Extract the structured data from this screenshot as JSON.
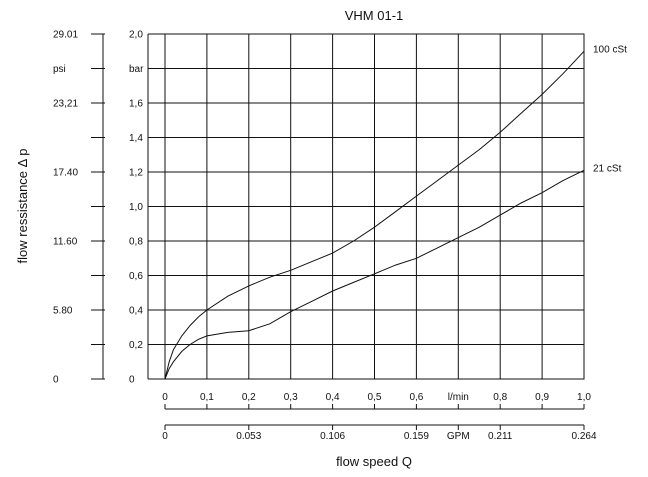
{
  "chart_data": {
    "type": "line",
    "title": "VHM 01-1",
    "xlabel": "flow speed Q",
    "ylabel": "flow ressistance Δ p",
    "x_unit": "l/min",
    "x_unit_secondary": "GPM",
    "y_unit": "bar",
    "y_unit_secondary": "psi",
    "xlim": [
      0,
      1.0
    ],
    "ylim": [
      0,
      2.0
    ],
    "grid": true,
    "x_ticks": [
      "0",
      "0,1",
      "0,2",
      "0,3",
      "0,4",
      "0,5",
      "0,6",
      "l/min",
      "0,8",
      "0,9",
      "1,0"
    ],
    "gpm_ticks": [
      {
        "x": 0,
        "label": "0"
      },
      {
        "x": 0.2,
        "label": "0.053"
      },
      {
        "x": 0.4,
        "label": "0.106"
      },
      {
        "x": 0.6,
        "label": "0.159"
      },
      {
        "x": 0.7,
        "label": "GPM"
      },
      {
        "x": 0.8,
        "label": "0.211"
      },
      {
        "x": 1.0,
        "label": "0.264"
      }
    ],
    "y_ticks": [
      "0",
      "0,2",
      "0,4",
      "0,6",
      "0,8",
      "1,0",
      "1,2",
      "1,4",
      "1,6",
      "bar",
      "2,0"
    ],
    "psi_ticks": [
      {
        "y": 0,
        "label": "0"
      },
      {
        "y": 0.4,
        "label": "5.80"
      },
      {
        "y": 0.8,
        "label": "11.60"
      },
      {
        "y": 1.2,
        "label": "17.40"
      },
      {
        "y": 1.6,
        "label": "23,21"
      },
      {
        "y": 1.8,
        "label": "psi"
      },
      {
        "y": 2.0,
        "label": "29.01"
      }
    ],
    "series": [
      {
        "name": "100 cSt",
        "x": [
          0,
          0.01,
          0.02,
          0.04,
          0.06,
          0.08,
          0.1,
          0.15,
          0.2,
          0.25,
          0.3,
          0.35,
          0.4,
          0.45,
          0.5,
          0.55,
          0.6,
          0.65,
          0.7,
          0.75,
          0.8,
          0.85,
          0.9,
          0.95,
          1.0
        ],
        "y": [
          0,
          0.1,
          0.17,
          0.25,
          0.31,
          0.36,
          0.4,
          0.48,
          0.54,
          0.59,
          0.63,
          0.68,
          0.73,
          0.8,
          0.88,
          0.97,
          1.06,
          1.15,
          1.24,
          1.33,
          1.43,
          1.54,
          1.65,
          1.77,
          1.9
        ]
      },
      {
        "name": "21 cSt",
        "x": [
          0,
          0.01,
          0.02,
          0.04,
          0.06,
          0.08,
          0.1,
          0.15,
          0.2,
          0.25,
          0.3,
          0.35,
          0.4,
          0.45,
          0.5,
          0.55,
          0.6,
          0.65,
          0.7,
          0.75,
          0.8,
          0.85,
          0.9,
          0.95,
          1.0
        ],
        "y": [
          0,
          0.06,
          0.1,
          0.16,
          0.2,
          0.23,
          0.25,
          0.27,
          0.28,
          0.32,
          0.39,
          0.45,
          0.51,
          0.56,
          0.61,
          0.66,
          0.7,
          0.76,
          0.82,
          0.88,
          0.95,
          1.02,
          1.08,
          1.15,
          1.21
        ]
      }
    ]
  }
}
